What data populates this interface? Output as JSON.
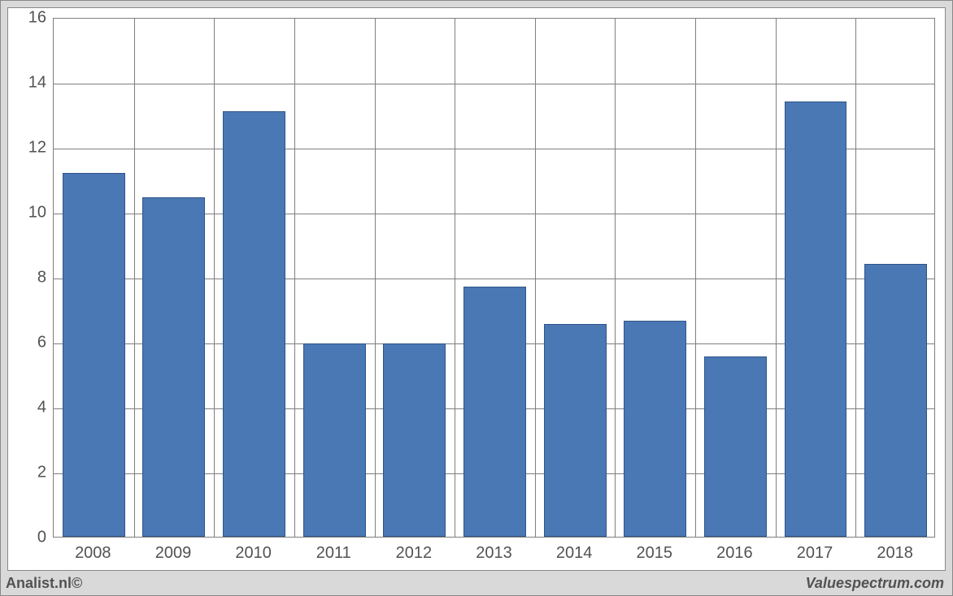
{
  "chart": {
    "type": "bar",
    "categories": [
      "2008",
      "2009",
      "2010",
      "2011",
      "2012",
      "2013",
      "2014",
      "2015",
      "2016",
      "2017",
      "2018"
    ],
    "values": [
      11.2,
      10.45,
      13.1,
      5.95,
      5.95,
      7.7,
      6.55,
      6.65,
      5.55,
      13.4,
      8.4
    ],
    "bar_color": "#4a78b5",
    "bar_border_color": "#2f5488",
    "background_color": "#ffffff",
    "grid_color": "#7f7f7f",
    "outer_background": "#d9d9d9",
    "ylim": [
      0,
      16
    ],
    "yticks": [
      0,
      2,
      4,
      6,
      8,
      10,
      12,
      14,
      16
    ],
    "bar_width_ratio": 0.78,
    "label_fontsize": 20,
    "label_color": "#525252"
  },
  "footer": {
    "left": "Analist.nl©",
    "right": "Valuespectrum.com"
  }
}
